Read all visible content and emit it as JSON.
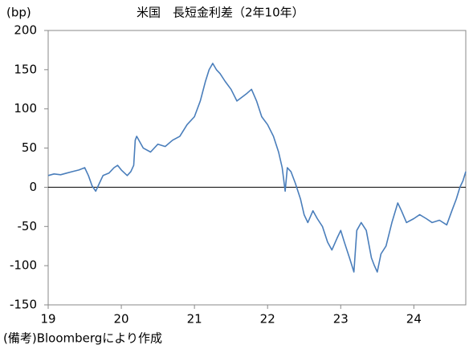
{
  "chart_data": {
    "type": "line",
    "title": "米国　長短金利差（2年10年）",
    "y_unit": "(bp)",
    "note": "(備考)Bloombergにより作成",
    "x": [
      19.0,
      19.08,
      19.17,
      19.25,
      19.33,
      19.42,
      19.5,
      19.55,
      19.6,
      19.65,
      19.7,
      19.75,
      19.83,
      19.9,
      19.95,
      20.0,
      20.08,
      20.13,
      20.17,
      20.19,
      20.21,
      20.3,
      20.4,
      20.5,
      20.6,
      20.7,
      20.8,
      20.9,
      21.0,
      21.08,
      21.15,
      21.2,
      21.25,
      21.3,
      21.35,
      21.42,
      21.5,
      21.58,
      21.65,
      21.72,
      21.78,
      21.85,
      21.92,
      22.0,
      22.08,
      22.15,
      22.2,
      22.24,
      22.27,
      22.32,
      22.38,
      22.45,
      22.5,
      22.55,
      22.62,
      22.68,
      22.75,
      22.82,
      22.88,
      22.95,
      23.0,
      23.05,
      23.12,
      23.18,
      23.22,
      23.28,
      23.35,
      23.42,
      23.46,
      23.5,
      23.55,
      23.62,
      23.7,
      23.78,
      23.83,
      23.9,
      24.0,
      24.08,
      24.17,
      24.25,
      24.35,
      24.45,
      24.52,
      24.58,
      24.63,
      24.67,
      24.71
    ],
    "series": [
      {
        "name": "長短金利差",
        "color": "#4a7ebb",
        "values": [
          15,
          17,
          16,
          18,
          20,
          22,
          25,
          15,
          2,
          -5,
          5,
          15,
          18,
          25,
          28,
          22,
          15,
          20,
          28,
          60,
          65,
          50,
          45,
          55,
          52,
          60,
          65,
          80,
          90,
          110,
          135,
          150,
          158,
          150,
          145,
          135,
          125,
          110,
          115,
          120,
          125,
          110,
          90,
          80,
          65,
          45,
          25,
          -5,
          25,
          20,
          5,
          -15,
          -35,
          -45,
          -30,
          -40,
          -50,
          -70,
          -80,
          -65,
          -55,
          -70,
          -90,
          -108,
          -55,
          -45,
          -55,
          -90,
          -100,
          -108,
          -85,
          -75,
          -45,
          -20,
          -30,
          -45,
          -40,
          -35,
          -40,
          -45,
          -42,
          -48,
          -30,
          -15,
          0,
          8,
          20
        ]
      }
    ],
    "xlim": [
      19,
      24.71
    ],
    "xticks": [
      19,
      20,
      21,
      22,
      23,
      24
    ],
    "ylim": [
      -150,
      200
    ],
    "yticks": [
      -150,
      -100,
      -50,
      0,
      50,
      100,
      150,
      200
    ]
  }
}
